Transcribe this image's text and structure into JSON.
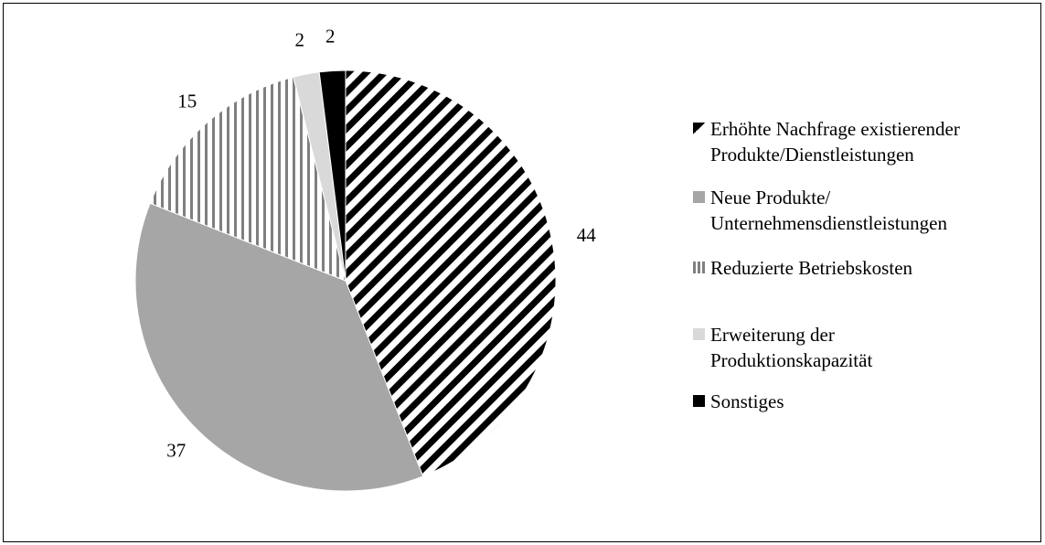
{
  "chart_data": {
    "type": "pie",
    "title": "",
    "start_angle_deg": 0,
    "direction": "clockwise",
    "slices": [
      {
        "label": "Erhöhte Nachfrage existierender Produkte/Dienstleistungen",
        "value": 44,
        "data_label": "44",
        "fill": "diagonal-stripes"
      },
      {
        "label": "Neue Produkte/ Unternehmensdienstleistungen",
        "value": 37,
        "data_label": "37",
        "fill": "#a6a6a6"
      },
      {
        "label": "Reduzierte Betriebskosten",
        "value": 15,
        "data_label": "15",
        "fill": "vertical-stripes"
      },
      {
        "label": "Erweiterung der Produktionskapazität",
        "value": 2,
        "data_label": "2",
        "fill": "#d9d9d9"
      },
      {
        "label": "Sonstiges",
        "value": 2,
        "data_label": "2",
        "fill": "#000000"
      }
    ],
    "legend": {
      "position": "right",
      "entries": [
        [
          "Erhöhte Nachfrage existierender",
          "Produkte/Dienstleistungen"
        ],
        [
          "Neue Produkte/",
          "Unternehmensdienstleistungen"
        ],
        [
          "Reduzierte Betriebskosten"
        ],
        [
          "Erweiterung der",
          "Produktionskapazität"
        ],
        [
          "Sonstiges"
        ]
      ]
    }
  }
}
